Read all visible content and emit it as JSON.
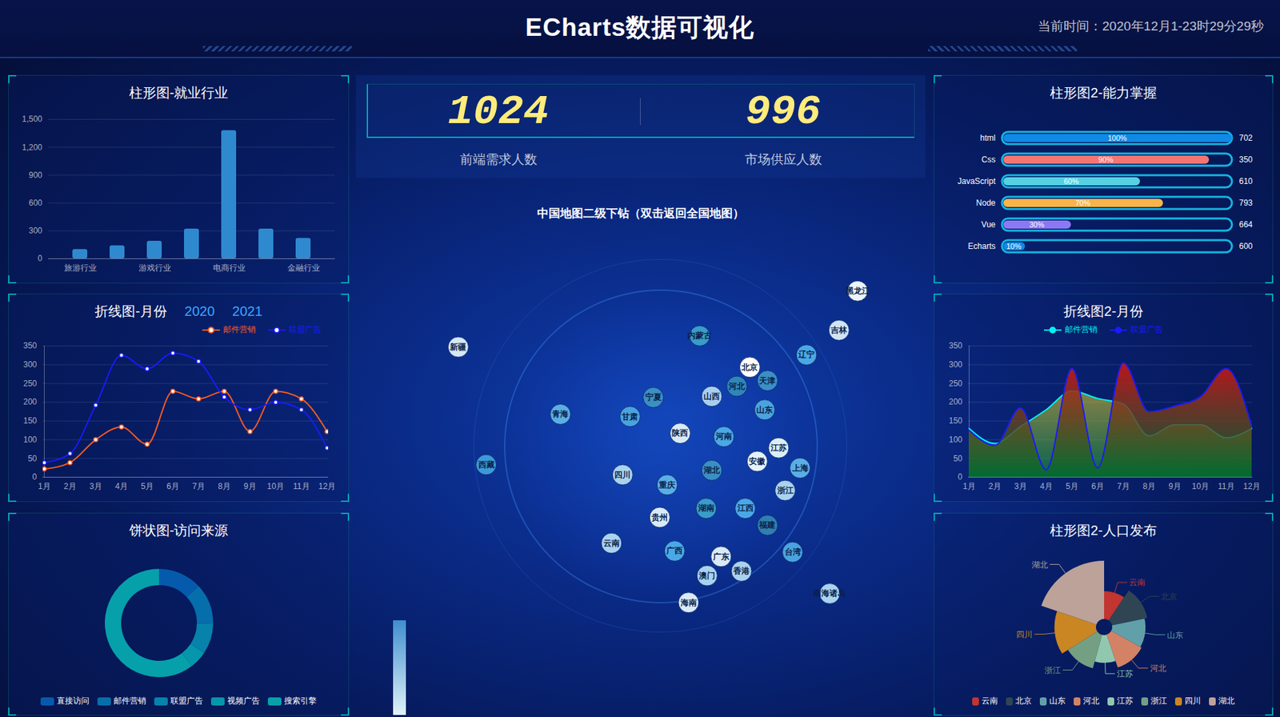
{
  "header": {
    "title": "ECharts数据可视化",
    "time": "当前时间：2020年12月1-23时29分29秒"
  },
  "counters": [
    {
      "value": 1024,
      "label": "前端需求人数"
    },
    {
      "value": 996,
      "label": "市场供应人数"
    }
  ],
  "chart_data": [
    {
      "type": "bar",
      "title": "柱形图-就业行业",
      "categories": [
        "旅游行业",
        null,
        "游戏行业",
        null,
        "电商行业",
        null,
        "金融行业"
      ],
      "values": [
        100,
        140,
        190,
        320,
        1380,
        320,
        220
      ],
      "color": "#2f89cf",
      "ylim": [
        0,
        1500
      ],
      "yticks": [
        0,
        300,
        600,
        900,
        {
          "value": 1200,
          "label": "1,200"
        },
        {
          "value": 1500,
          "label": "1,500"
        }
      ],
      "grid": true
    },
    {
      "type": "line",
      "title": "折线图-月份",
      "annotations": [
        "2020",
        "2021"
      ],
      "categories": [
        "1月",
        "2月",
        "3月",
        "4月",
        "5月",
        "6月",
        "7月",
        "8月",
        "9月",
        "10月",
        "11月",
        "12月"
      ],
      "series": [
        {
          "name": "邮件营销",
          "color": "#ff5a1f",
          "values": [
            22,
            39,
            100,
            134,
            88,
            229,
            209,
            229,
            122,
            229,
            209,
            122
          ]
        },
        {
          "name": "联盟广告",
          "color": "#1a1aff",
          "values": [
            39,
            63,
            192,
            325,
            289,
            331,
            309,
            214,
            180,
            200,
            180,
            78
          ]
        }
      ],
      "ylim": [
        0,
        350
      ],
      "yticks": [
        0,
        50,
        100,
        150,
        200,
        250,
        300,
        350
      ],
      "grid": true,
      "legend": "top-right",
      "marker": "circle"
    },
    {
      "type": "donut",
      "title": "饼状图-访问来源",
      "categories": [
        "直接访问",
        "邮件营销",
        "联盟广告",
        "视频广告",
        "搜索引擎"
      ],
      "values": [
        335,
        310,
        234,
        135,
        1548
      ],
      "colors": [
        "#065aab",
        "#066eab",
        "#0682ab",
        "#0696ab",
        "#06a0ab"
      ],
      "legend": "bottom"
    },
    {
      "type": "map",
      "title": "中国地图二级下钻（双击返回全国地图）",
      "categories": [
        "新疆",
        "西藏",
        "青海",
        "甘肃",
        "宁夏",
        "内蒙古",
        "黑龙江",
        "吉林",
        "辽宁",
        "北京",
        "天津",
        "河北",
        "山西",
        "陕西",
        "山东",
        "河南",
        "四川",
        "重庆",
        "湖北",
        "安徽",
        "江苏",
        "上海",
        "浙江",
        "湖南",
        "江西",
        "贵州",
        "云南",
        "广西",
        "广东",
        "福建",
        "台湾",
        "香港",
        "澳门",
        "海南",
        "南海诸岛"
      ],
      "lon": [
        85,
        88,
        96,
        103.5,
        106,
        111,
        128,
        126,
        122.5,
        116.4,
        118.3,
        115,
        112.3,
        108.9,
        118,
        113.6,
        102.7,
        107.5,
        112.3,
        117.2,
        119.5,
        121.8,
        120.2,
        111.7,
        115.9,
        106.7,
        101.5,
        108.3,
        113.3,
        118.3,
        121,
        115.5,
        111.8,
        109.8,
        125
      ],
      "lat": [
        42,
        31.5,
        36,
        35.8,
        37.5,
        43,
        47,
        43.5,
        41.3,
        40.2,
        39,
        38.5,
        37.6,
        34.3,
        36.4,
        34,
        30.6,
        29.7,
        31,
        31.8,
        33,
        31.2,
        29.2,
        27.6,
        27.6,
        26.8,
        24.5,
        23.8,
        23.3,
        26.1,
        23.7,
        22,
        21.6,
        19.2,
        20
      ],
      "colors": [
        "#d4e8f6",
        "#3c9ad8",
        "#5aaee6",
        "#4aa3df",
        "#3a8fc4",
        "#3a9cc8",
        "#e9f4fb",
        "#cfe4f5",
        "#4aa8e6",
        "#ffffff",
        "#3a8fc4",
        "#2f86b8",
        "#a9cff0",
        "#d8eaf8",
        "#4aa3df",
        "#4aa8e6",
        "#a9d2f0",
        "#5aaee6",
        "#3a8fc4",
        "#e6f2fb",
        "#dbeef9",
        "#5aaee6",
        "#a9d2f0",
        "#3a9cc8",
        "#4aa8e6",
        "#d8eaf8",
        "#a9d2f0",
        "#4aa8e6",
        "#d8eaf8",
        "#2f7fb0",
        "#4aa3df",
        "#a9d2f0",
        "#a9d2f0",
        "#d8eaf8",
        "#a9d2f0"
      ]
    },
    {
      "type": "bar",
      "orientation": "horizontal",
      "title": "柱形图2-能力掌握",
      "categories": [
        "html",
        "Css",
        "JavaScript",
        "Node",
        "Vue",
        "Echarts"
      ],
      "values": [
        100,
        90,
        60,
        70,
        30,
        10
      ],
      "value_labels": [
        "100%",
        "90%",
        "60%",
        "70%",
        "30%",
        "10%"
      ],
      "data_labels": true,
      "totals": [
        702,
        350,
        610,
        793,
        664,
        600
      ],
      "colors": [
        "#1089E7",
        "#F57474",
        "#56D0E3",
        "#F8B448",
        "#8B78F6",
        "#1089E7"
      ],
      "xlim": [
        0,
        100
      ],
      "tick_labels": "y"
    },
    {
      "type": "area",
      "title": "折线图2-月份",
      "categories": [
        "1月",
        "2月",
        "3月",
        "4月",
        "5月",
        "6月",
        "7月",
        "8月",
        "9月",
        "10月",
        "11月",
        "12月"
      ],
      "series": [
        {
          "name": "邮件营销",
          "color": "#00f2f1",
          "values": [
            130,
            90,
            135,
            180,
            230,
            210,
            195,
            110,
            140,
            140,
            105,
            130
          ]
        },
        {
          "name": "联盟广告",
          "color": "#1a1aff",
          "values": [
            125,
            85,
            185,
            20,
            290,
            25,
            305,
            175,
            190,
            215,
            290,
            135
          ]
        }
      ],
      "ylim": [
        0,
        350
      ],
      "yticks": [
        0,
        50,
        100,
        150,
        200,
        250,
        300,
        350
      ],
      "grid": true,
      "legend": "top",
      "marker": "none"
    },
    {
      "type": "rose",
      "title": "柱形图2-人口发布",
      "categories": [
        "云南",
        "北京",
        "山东",
        "河北",
        "江苏",
        "浙江",
        "四川",
        "湖北"
      ],
      "values": [
        20,
        26,
        24,
        25,
        20,
        25,
        30,
        42
      ],
      "colors": [
        "#c23531",
        "#2f4554",
        "#61a0a8",
        "#d48265",
        "#91c7ae",
        "#749f83",
        "#ca8622",
        "#bda29a"
      ],
      "legend": "bottom"
    }
  ]
}
